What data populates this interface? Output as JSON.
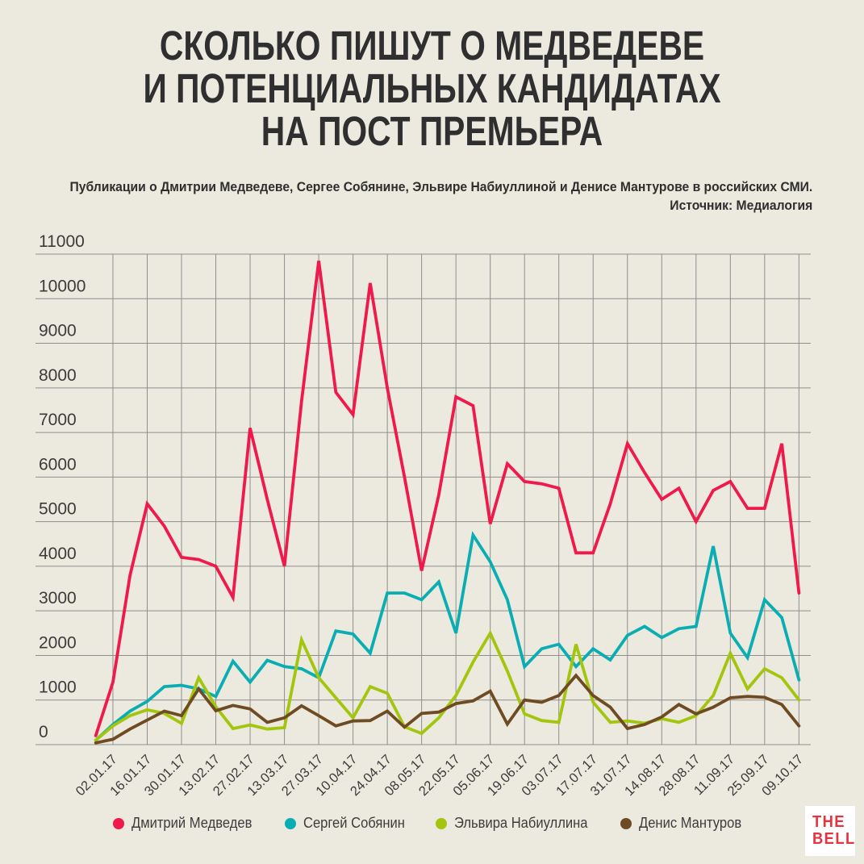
{
  "title": {
    "line1": "СКОЛЬКО ПИШУТ О МЕДВЕДЕВЕ",
    "line2": "И ПОТЕНЦИАЛЬНЫХ КАНДИДАТАХ",
    "line3": "НА ПОСТ ПРЕМЬЕРА"
  },
  "subtitle": {
    "line1": "Публикации о Дмитрии Медведеве, Сергее Собянине, Эльвире Набиуллиной и Денисе Мантурове в российских СМИ.",
    "line2": "Источник: Медиалогия"
  },
  "logo": {
    "line1": "THE",
    "line2": "BELL",
    "color": "#E8323E",
    "background": "#FFFFFF"
  },
  "colors": {
    "background": "#ECE9DF",
    "grid": "#8E8E8E",
    "title_text": "#2F2F2F",
    "axis_text": "#3B3B3B"
  },
  "chart_data": {
    "type": "line",
    "title": "СКОЛЬКО ПИШУТ О МЕДВЕДЕВЕ И ПОТЕНЦИАЛЬНЫХ КАНДИДАТАХ НА ПОСТ ПРЕМЬЕРА",
    "xlabel": "",
    "ylabel": "",
    "ylim": [
      0,
      11000
    ],
    "y_ticks": [
      0,
      1000,
      2000,
      3000,
      4000,
      5000,
      6000,
      7000,
      8000,
      9000,
      10000,
      11000
    ],
    "grid": true,
    "legend_position": "bottom",
    "x": [
      "26.12.16",
      "02.01.17",
      "09.01.17",
      "16.01.17",
      "23.01.17",
      "30.01.17",
      "06.02.17",
      "13.02.17",
      "20.02.17",
      "27.02.17",
      "06.03.17",
      "13.03.17",
      "20.03.17",
      "27.03.17",
      "03.04.17",
      "10.04.17",
      "17.04.17",
      "24.04.17",
      "01.05.17",
      "08.05.17",
      "15.05.17",
      "22.05.17",
      "29.05.17",
      "05.06.17",
      "12.06.17",
      "19.06.17",
      "26.06.17",
      "03.07.17",
      "10.07.17",
      "17.07.17",
      "24.07.17",
      "31.07.17",
      "07.08.17",
      "14.08.17",
      "21.08.17",
      "28.08.17",
      "04.09.17",
      "11.09.17",
      "18.09.17",
      "25.09.17",
      "02.10.17",
      "09.10.17"
    ],
    "x_tick_labels": [
      "02.01.17",
      "16.01.17",
      "30.01.17",
      "13.02.17",
      "27.02.17",
      "13.03.17",
      "27.03.17",
      "10.04.17",
      "24.04.17",
      "08.05.17",
      "22.05.17",
      "05.06.17",
      "19.06.17",
      "03.07.17",
      "17.07.17",
      "31.07.17",
      "14.08.17",
      "28.08.17",
      "11.09.17",
      "25.09.17",
      "09.10.17"
    ],
    "series": [
      {
        "name": "Дмитрий Медведев",
        "color": "#EF1A4B",
        "values": [
          200,
          1400,
          3800,
          5400,
          4900,
          4200,
          4150,
          4000,
          3300,
          7100,
          5500,
          4000,
          7700,
          10850,
          7900,
          7400,
          10350,
          8000,
          6000,
          3900,
          5600,
          7800,
          7600,
          4950,
          6300,
          5900,
          5850,
          5750,
          4300,
          4300,
          5400,
          6750,
          6100,
          5500,
          5750,
          5000,
          5700,
          5900,
          5300,
          5300,
          6750,
          3400
        ]
      },
      {
        "name": "Сергей Собянин",
        "color": "#0AAEB2",
        "values": [
          100,
          450,
          750,
          970,
          1300,
          1330,
          1250,
          1080,
          1870,
          1400,
          1890,
          1750,
          1700,
          1500,
          2550,
          2480,
          2050,
          3400,
          3400,
          3250,
          3650,
          2500,
          4700,
          4100,
          3250,
          1750,
          2150,
          2250,
          1750,
          2150,
          1900,
          2450,
          2650,
          2400,
          2600,
          2650,
          4450,
          2500,
          1950,
          3250,
          2850,
          1450
        ]
      },
      {
        "name": "Эльвира Набиуллина",
        "color": "#A4C50D",
        "values": [
          100,
          420,
          650,
          780,
          700,
          475,
          1500,
          850,
          360,
          440,
          350,
          380,
          2350,
          1500,
          1050,
          600,
          1300,
          1150,
          400,
          250,
          600,
          1100,
          1850,
          2500,
          1650,
          690,
          540,
          500,
          2250,
          950,
          500,
          530,
          480,
          580,
          500,
          650,
          1100,
          2050,
          1250,
          1700,
          1500,
          1000
        ]
      },
      {
        "name": "Денис Мантуров",
        "color": "#6E4B22",
        "values": [
          40,
          120,
          350,
          550,
          750,
          650,
          1250,
          760,
          880,
          800,
          500,
          600,
          870,
          650,
          420,
          530,
          540,
          750,
          390,
          700,
          730,
          920,
          980,
          1200,
          460,
          1000,
          950,
          1100,
          1550,
          1100,
          840,
          360,
          450,
          620,
          900,
          690,
          840,
          1050,
          1080,
          1060,
          900,
          420
        ]
      }
    ]
  }
}
